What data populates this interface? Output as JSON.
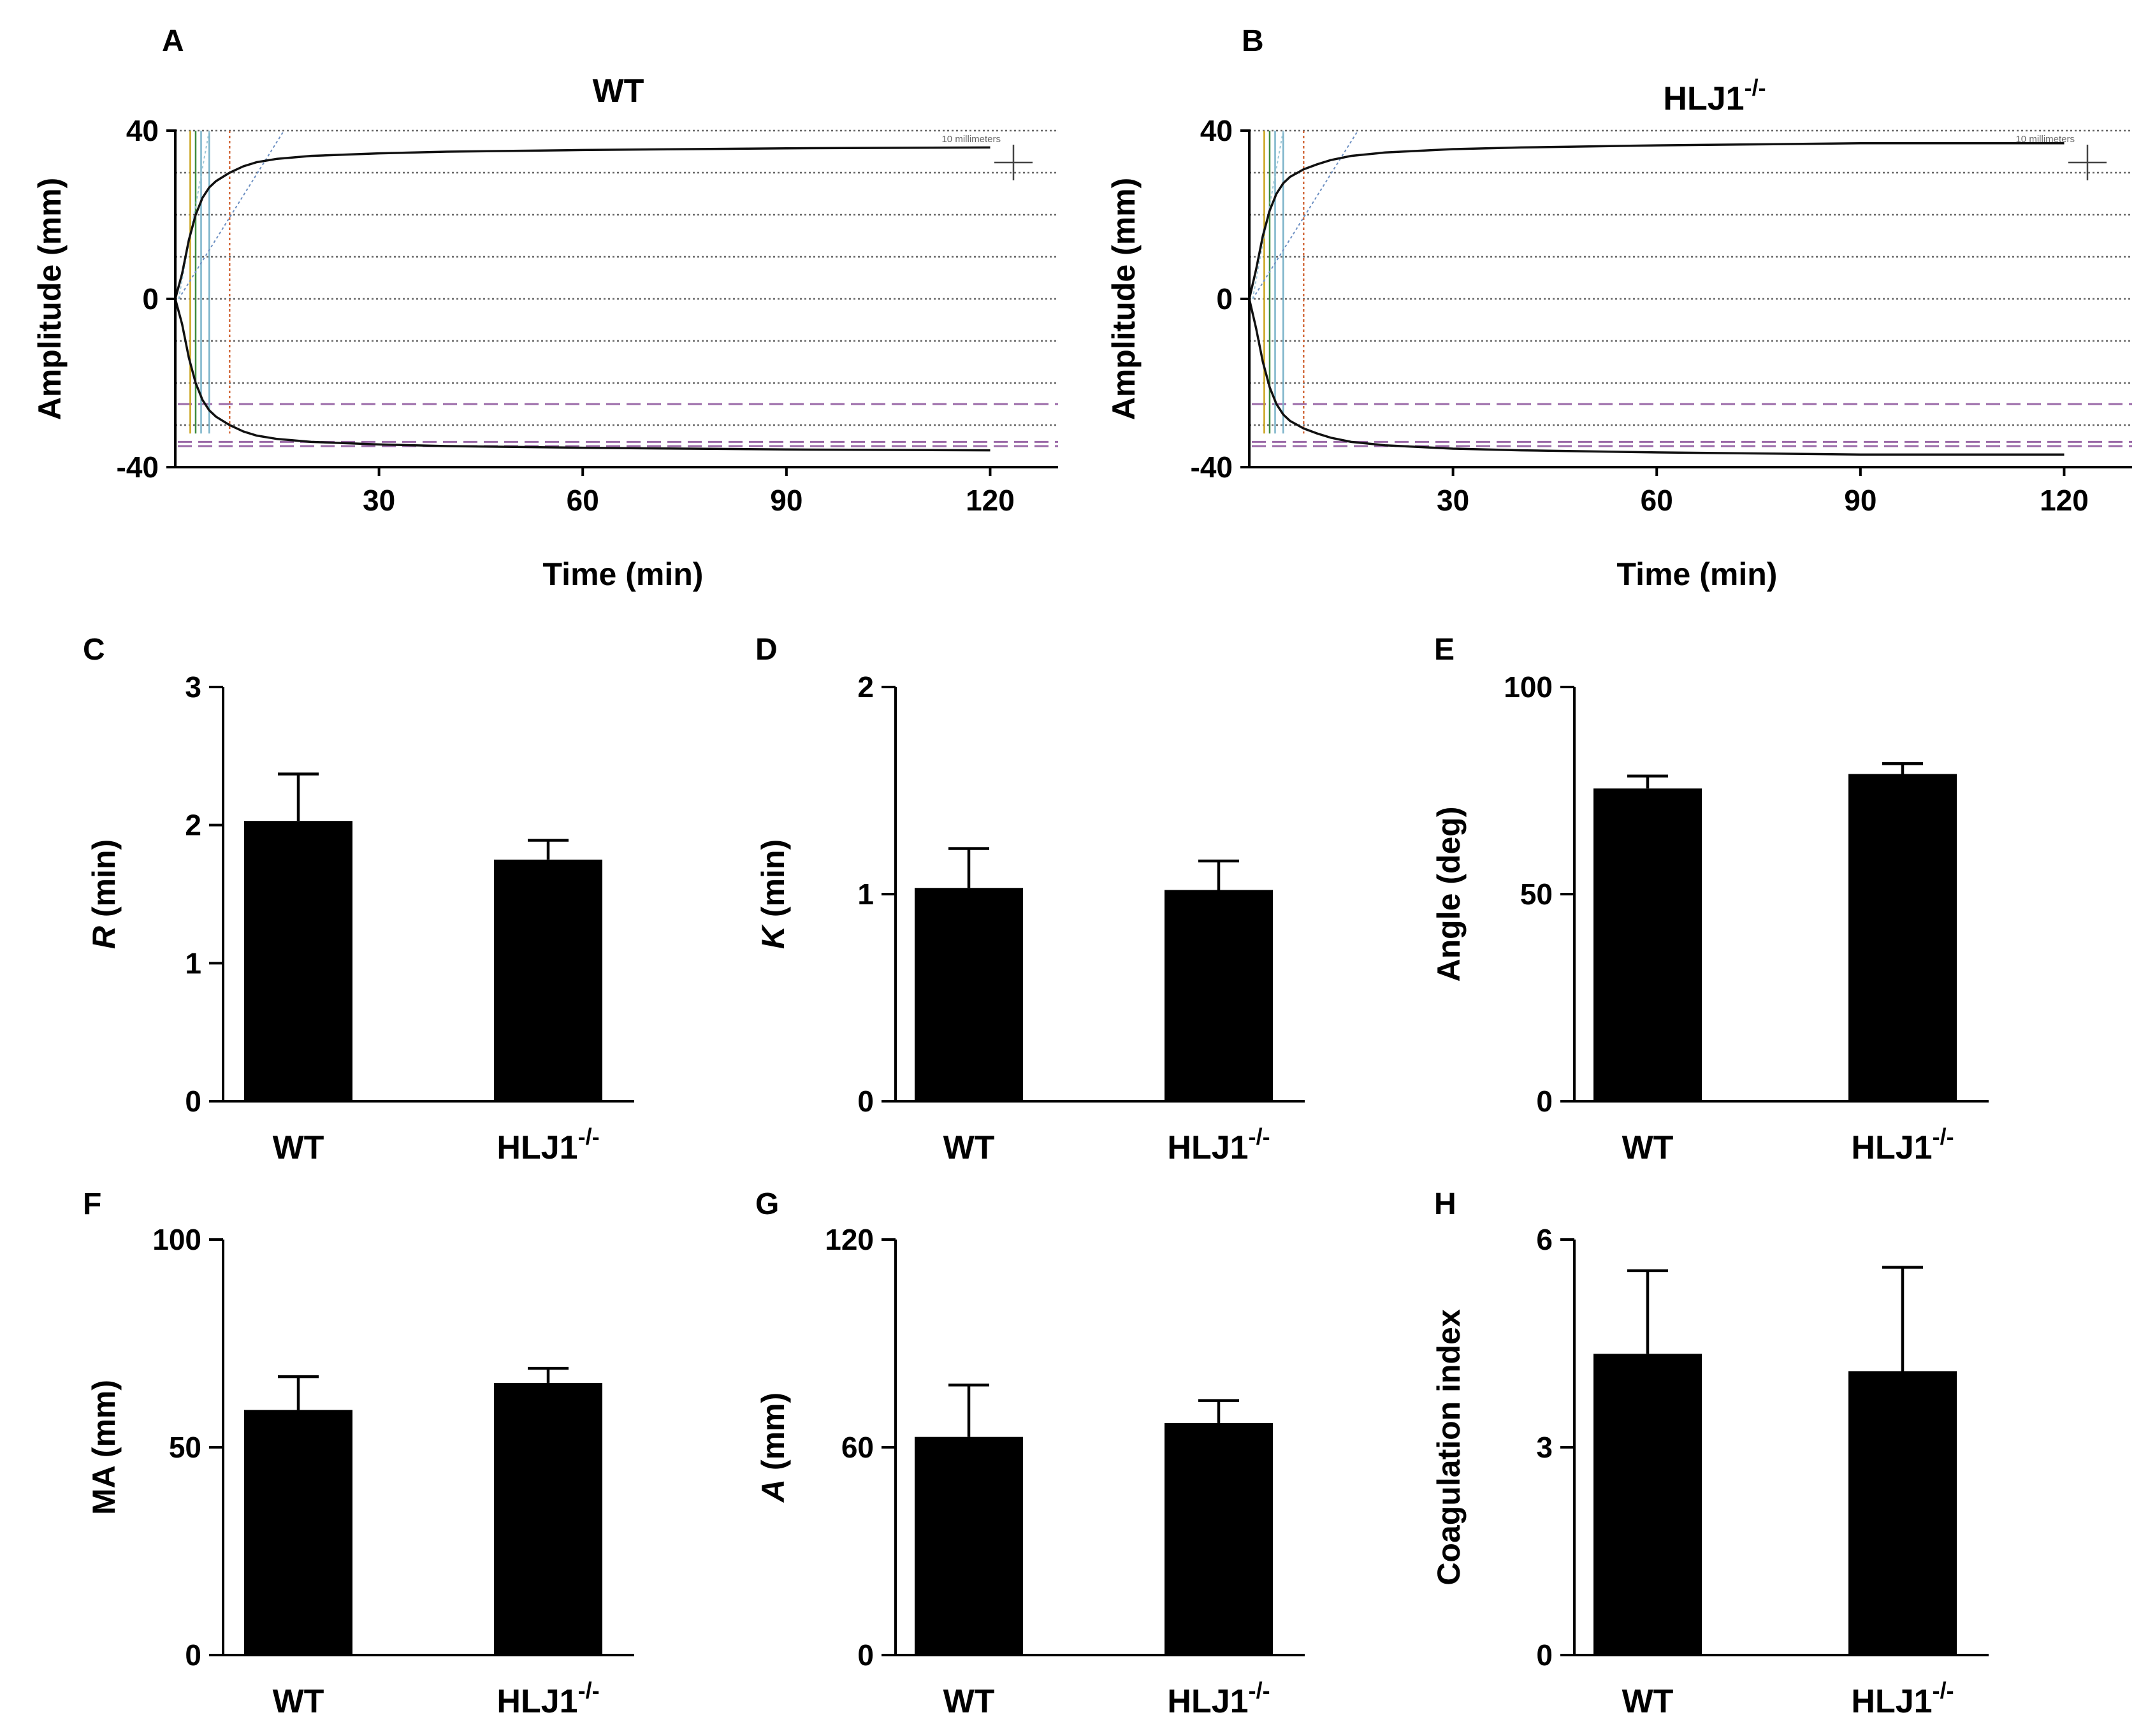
{
  "figure": {
    "panels": {
      "A": "A",
      "B": "B",
      "C": "C",
      "D": "D",
      "E": "E",
      "F": "F",
      "G": "G",
      "H": "H"
    }
  },
  "chart_data": [
    {
      "id": "A",
      "type": "line",
      "title": "WT",
      "xlabel": "Time (min)",
      "ylabel": "Amplitude (mm)",
      "xlim": [
        0,
        130
      ],
      "ylim": [
        -40,
        40
      ],
      "xticks": [
        "30",
        "60",
        "90",
        "120"
      ],
      "yticks": [
        "40",
        "0",
        "-40"
      ],
      "scale_label": "10 millimeters",
      "series": [
        {
          "name": "upper trace",
          "x": [
            0,
            1,
            2,
            3,
            4,
            5,
            6,
            8,
            10,
            12,
            15,
            20,
            30,
            40,
            60,
            90,
            120
          ],
          "y": [
            0,
            6,
            14,
            20,
            24,
            26.5,
            28,
            30,
            31.5,
            32.5,
            33.3,
            34,
            34.6,
            35,
            35.4,
            35.8,
            36
          ]
        },
        {
          "name": "lower trace",
          "x": [
            0,
            1,
            2,
            3,
            4,
            5,
            6,
            8,
            10,
            12,
            15,
            20,
            30,
            40,
            60,
            90,
            120
          ],
          "y": [
            0,
            -6,
            -14,
            -20,
            -24,
            -26.5,
            -28,
            -30,
            -31.5,
            -32.5,
            -33.3,
            -34,
            -34.6,
            -35,
            -35.4,
            -35.8,
            -36
          ]
        }
      ]
    },
    {
      "id": "B",
      "type": "line",
      "title": "HLJ1",
      "title_sup": "-/-",
      "xlabel": "Time (min)",
      "ylabel": "Amplitude (mm)",
      "xlim": [
        0,
        130
      ],
      "ylim": [
        -40,
        40
      ],
      "xticks": [
        "30",
        "60",
        "90",
        "120"
      ],
      "yticks": [
        "40",
        "0",
        "-40"
      ],
      "scale_label": "10 millimeters",
      "series": [
        {
          "name": "upper trace",
          "x": [
            0,
            1,
            2,
            3,
            4,
            5,
            6,
            8,
            10,
            12,
            15,
            20,
            30,
            40,
            60,
            90,
            120
          ],
          "y": [
            0,
            7,
            15,
            21,
            25,
            27.5,
            29,
            30.8,
            32,
            33,
            34,
            34.8,
            35.6,
            36,
            36.5,
            37,
            37
          ]
        },
        {
          "name": "lower trace",
          "x": [
            0,
            1,
            2,
            3,
            4,
            5,
            6,
            8,
            10,
            12,
            15,
            20,
            30,
            40,
            60,
            90,
            120
          ],
          "y": [
            0,
            -7,
            -15,
            -21,
            -25,
            -27.5,
            -29,
            -30.8,
            -32,
            -33,
            -34,
            -34.8,
            -35.6,
            -36,
            -36.5,
            -37,
            -37
          ]
        }
      ]
    },
    {
      "id": "C",
      "type": "bar",
      "categories": [
        "WT",
        "HLJ1"
      ],
      "category_sup": [
        "",
        "-/-"
      ],
      "values": [
        2.03,
        1.75
      ],
      "errors": [
        0.34,
        0.14
      ],
      "ylabel_italic": "R",
      "ylabel": " (min)",
      "ylim": [
        0,
        3
      ],
      "yticks": [
        "0",
        "1",
        "2",
        "3"
      ]
    },
    {
      "id": "D",
      "type": "bar",
      "categories": [
        "WT",
        "HLJ1"
      ],
      "category_sup": [
        "",
        "-/-"
      ],
      "values": [
        1.03,
        1.02
      ],
      "errors": [
        0.19,
        0.14
      ],
      "ylabel_italic": "K",
      "ylabel": " (min)",
      "ylim": [
        0,
        2
      ],
      "yticks": [
        "0",
        "1",
        "2"
      ]
    },
    {
      "id": "E",
      "type": "bar",
      "categories": [
        "WT",
        "HLJ1"
      ],
      "category_sup": [
        "",
        "-/-"
      ],
      "values": [
        75.5,
        79
      ],
      "errors": [
        3,
        2.5
      ],
      "ylabel": "Angle (deg)",
      "ylim": [
        0,
        100
      ],
      "yticks": [
        "0",
        "50",
        "100"
      ]
    },
    {
      "id": "F",
      "type": "bar",
      "categories": [
        "WT",
        "HLJ1"
      ],
      "category_sup": [
        "",
        "-/-"
      ],
      "values": [
        59,
        65.5
      ],
      "errors": [
        8,
        3.5
      ],
      "ylabel": "MA (mm)",
      "ylim": [
        0,
        100
      ],
      "yticks": [
        "0",
        "50",
        "100"
      ]
    },
    {
      "id": "G",
      "type": "bar",
      "categories": [
        "WT",
        "HLJ1"
      ],
      "category_sup": [
        "",
        "-/-"
      ],
      "values": [
        63,
        67
      ],
      "errors": [
        15,
        6.5
      ],
      "ylabel_italic": "A",
      "ylabel": " (mm)",
      "ylim": [
        0,
        120
      ],
      "yticks": [
        "0",
        "60",
        "120"
      ]
    },
    {
      "id": "H",
      "type": "bar",
      "categories": [
        "WT",
        "HLJ1"
      ],
      "category_sup": [
        "",
        "-/-"
      ],
      "values": [
        4.35,
        4.1
      ],
      "errors": [
        1.2,
        1.5
      ],
      "ylabel": "Coagulation index",
      "ylim": [
        0,
        6
      ],
      "yticks": [
        "0",
        "3",
        "6"
      ]
    }
  ]
}
